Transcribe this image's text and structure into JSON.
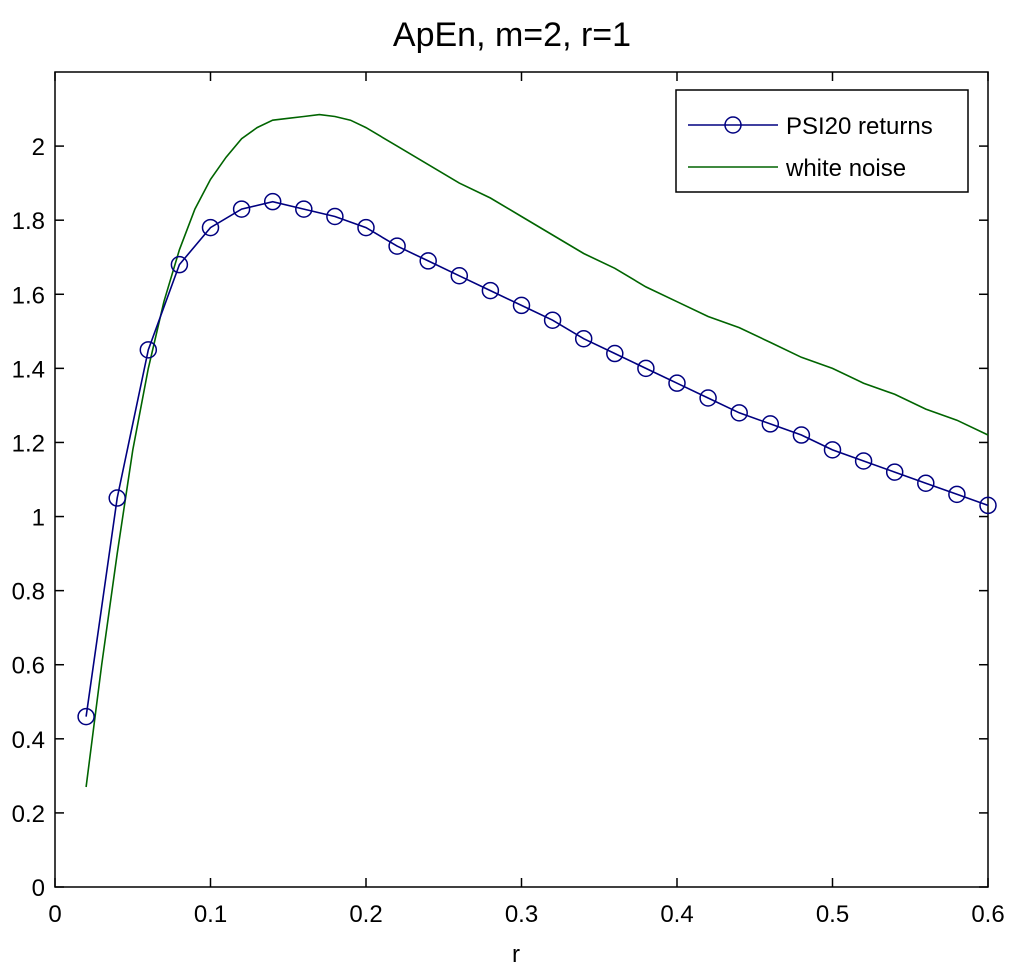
{
  "chart_data": {
    "type": "line",
    "title": "ApEn, m=2, r=1",
    "xlabel": "r",
    "ylabel": "",
    "xlim": [
      0,
      0.6
    ],
    "ylim": [
      0,
      2.2
    ],
    "xticks": [
      0,
      0.1,
      0.2,
      0.3,
      0.4,
      0.5,
      0.6
    ],
    "xtick_labels": [
      "0",
      "0.1",
      "0.2",
      "0.3",
      "0.4",
      "0.5",
      "0.6"
    ],
    "yticks": [
      0,
      0.2,
      0.4,
      0.6,
      0.8,
      1,
      1.2,
      1.4,
      1.6,
      1.8,
      2
    ],
    "ytick_labels": [
      "0",
      "0.2",
      "0.4",
      "0.6",
      "0.8",
      "1",
      "1.2",
      "1.4",
      "1.6",
      "1.8",
      "2"
    ],
    "grid": false,
    "legend_position": "top-right",
    "series": [
      {
        "name": "PSI20 returns",
        "color": "#000080",
        "marker": "circle",
        "x": [
          0.02,
          0.04,
          0.06,
          0.08,
          0.1,
          0.12,
          0.14,
          0.16,
          0.18,
          0.2,
          0.22,
          0.24,
          0.26,
          0.28,
          0.3,
          0.32,
          0.34,
          0.36,
          0.38,
          0.4,
          0.42,
          0.44,
          0.46,
          0.48,
          0.5,
          0.52,
          0.54,
          0.56,
          0.58,
          0.6
        ],
        "y": [
          0.46,
          1.05,
          1.45,
          1.68,
          1.78,
          1.83,
          1.85,
          1.83,
          1.81,
          1.78,
          1.73,
          1.69,
          1.65,
          1.61,
          1.57,
          1.53,
          1.48,
          1.44,
          1.4,
          1.36,
          1.32,
          1.28,
          1.25,
          1.22,
          1.18,
          1.15,
          1.12,
          1.09,
          1.06,
          1.03
        ]
      },
      {
        "name": "white noise",
        "color": "#006400",
        "marker": "none",
        "x": [
          0.02,
          0.03,
          0.04,
          0.05,
          0.06,
          0.07,
          0.08,
          0.09,
          0.1,
          0.11,
          0.12,
          0.13,
          0.14,
          0.15,
          0.16,
          0.17,
          0.18,
          0.19,
          0.2,
          0.22,
          0.24,
          0.26,
          0.28,
          0.3,
          0.32,
          0.34,
          0.36,
          0.38,
          0.4,
          0.42,
          0.44,
          0.46,
          0.48,
          0.5,
          0.52,
          0.54,
          0.56,
          0.58,
          0.6
        ],
        "y": [
          0.27,
          0.6,
          0.9,
          1.18,
          1.4,
          1.58,
          1.72,
          1.83,
          1.91,
          1.97,
          2.02,
          2.05,
          2.07,
          2.075,
          2.08,
          2.085,
          2.08,
          2.07,
          2.05,
          2.0,
          1.95,
          1.9,
          1.86,
          1.81,
          1.76,
          1.71,
          1.67,
          1.62,
          1.58,
          1.54,
          1.51,
          1.47,
          1.43,
          1.4,
          1.36,
          1.33,
          1.29,
          1.26,
          1.22
        ]
      }
    ]
  }
}
